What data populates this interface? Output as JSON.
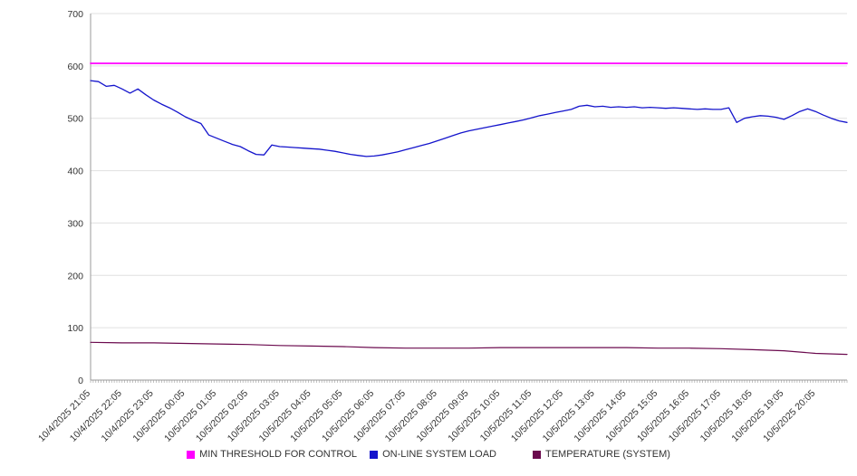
{
  "chart_data": {
    "type": "line",
    "title": "",
    "xlabel": "",
    "ylabel": "",
    "ylim": [
      0,
      700
    ],
    "yticks": [
      0,
      100,
      200,
      300,
      400,
      500,
      600,
      700
    ],
    "grid": true,
    "legend_position": "bottom",
    "x_hours_total": 24,
    "minor_tick_minutes": 5,
    "colors": {
      "grid": "#e0e0e0",
      "axis": "#9a9a9a",
      "minor_tick": "#999999",
      "label": "#333333"
    },
    "x_labels": [
      "10/4/2025 21:05",
      "10/4/2025 22:05",
      "10/4/2025 23:05",
      "10/5/2025 00:05",
      "10/5/2025 01:05",
      "10/5/2025 02:05",
      "10/5/2025 03:05",
      "10/5/2025 04:05",
      "10/5/2025 05:05",
      "10/5/2025 06:05",
      "10/5/2025 07:05",
      "10/5/2025 08:05",
      "10/5/2025 09:05",
      "10/5/2025 10:05",
      "10/5/2025 11:05",
      "10/5/2025 12:05",
      "10/5/2025 13:05",
      "10/5/2025 14:05",
      "10/5/2025 15:05",
      "10/5/2025 16:05",
      "10/5/2025 17:05",
      "10/5/2025 18:05",
      "10/5/2025 19:05",
      "10/5/2025 20:05"
    ],
    "series": [
      {
        "name": "MIN THRESHOLD FOR CONTROL",
        "color": "#ff00ff",
        "stroke_width": 1.8,
        "x_step_hours": 24,
        "values": [
          605,
          605
        ]
      },
      {
        "name": "ON-LINE SYSTEM LOAD",
        "color": "#1414cc",
        "stroke_width": 1.3,
        "x_step_hours": 0.25,
        "values": [
          572,
          570,
          561,
          563,
          556,
          548,
          556,
          545,
          535,
          527,
          520,
          512,
          503,
          496,
          490,
          468,
          462,
          456,
          450,
          446,
          438,
          431,
          430,
          449,
          446,
          445,
          444,
          443,
          442,
          441,
          439,
          437,
          434,
          431,
          429,
          427,
          428,
          430,
          433,
          436,
          440,
          444,
          448,
          452,
          457,
          462,
          467,
          472,
          476,
          479,
          482,
          485,
          488,
          491,
          494,
          497,
          501,
          505,
          508,
          511,
          514,
          517,
          523,
          525,
          522,
          523,
          521,
          522,
          521,
          522,
          520,
          521,
          520,
          519,
          520,
          519,
          518,
          517,
          518,
          517,
          517,
          520,
          492,
          500,
          503,
          505,
          504,
          502,
          498,
          505,
          513,
          518,
          513,
          506,
          500,
          495,
          492
        ]
      },
      {
        "name": "TEMPERATURE (SYSTEM)",
        "color": "#6b0a4e",
        "stroke_width": 1.2,
        "x_step_hours": 1,
        "values": [
          72,
          71,
          71,
          70,
          69,
          68,
          66,
          65,
          64,
          62,
          61,
          61,
          61,
          62,
          62,
          62,
          62,
          62,
          61,
          61,
          60,
          58,
          56,
          51,
          49
        ]
      }
    ]
  }
}
